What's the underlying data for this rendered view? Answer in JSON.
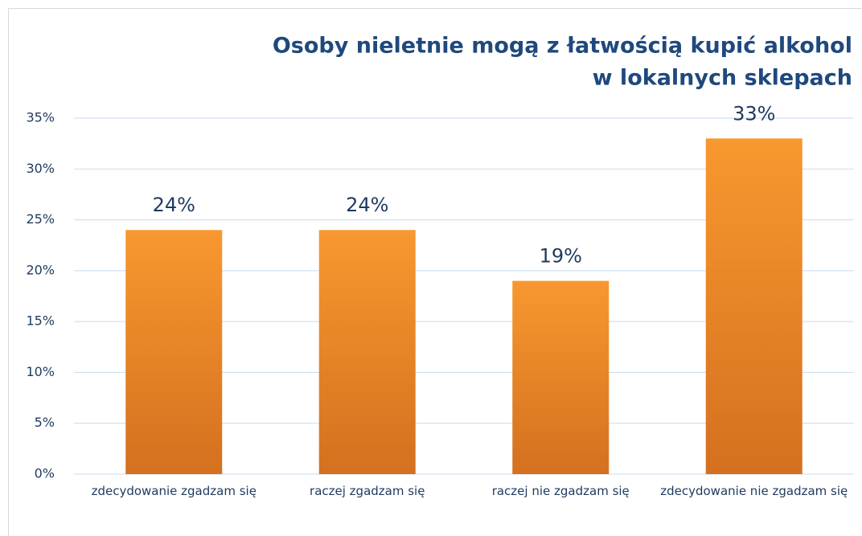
{
  "chart_data": {
    "type": "bar",
    "title": [
      "Osoby nieletnie mogą z łatwością kupić alkohol",
      "w lokalnych sklepach"
    ],
    "categories": [
      "zdecydowanie zgadzam się",
      "raczej zgadzam się",
      "raczej nie zgadzam się",
      "zdecydowanie nie zgadzam się"
    ],
    "values": [
      24,
      24,
      19,
      33
    ],
    "value_labels": [
      "24%",
      "24%",
      "19%",
      "33%"
    ],
    "color": [
      "#f8982f",
      "#d4701f"
    ],
    "ylim": [
      0,
      35
    ],
    "yticks": [
      {
        "value": 0,
        "label": "0%"
      },
      {
        "value": 5,
        "label": "5%"
      },
      {
        "value": 10,
        "label": "10%"
      },
      {
        "value": 15,
        "label": "15%"
      },
      {
        "value": 20,
        "label": "20%"
      },
      {
        "value": 25,
        "label": "25%"
      },
      {
        "value": 30,
        "label": "30%"
      },
      {
        "value": 35,
        "label": "35%"
      }
    ],
    "grid": true
  }
}
